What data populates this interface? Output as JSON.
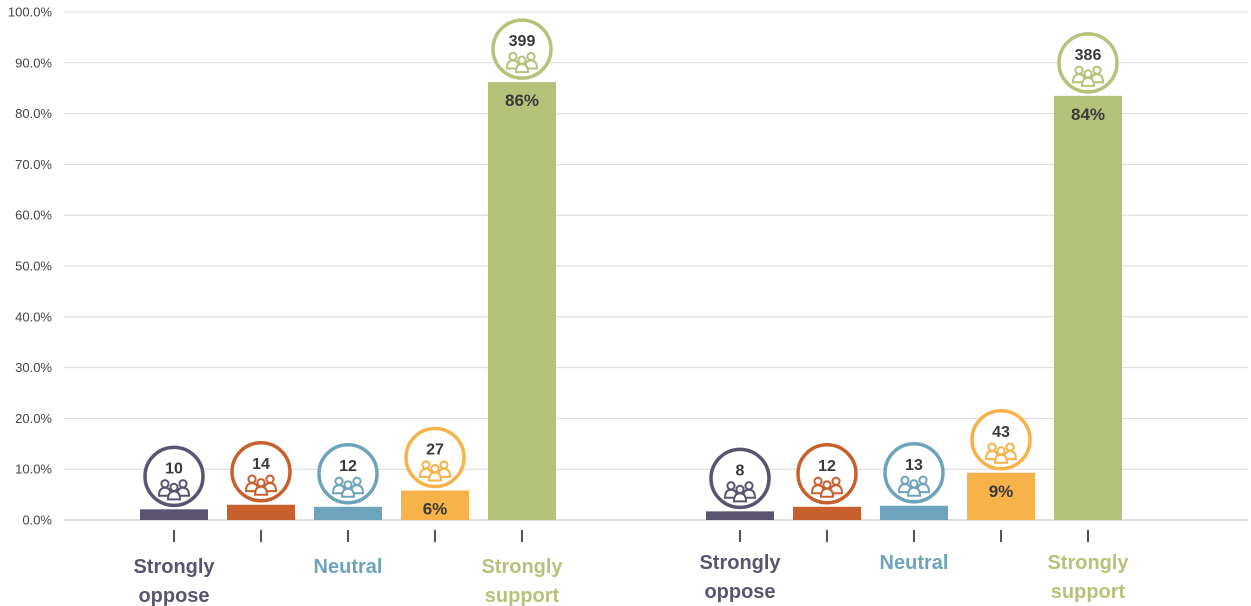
{
  "chart_data": {
    "type": "bar",
    "ylim": [
      0,
      100
    ],
    "y_ticks": [
      "0.0%",
      "10.0%",
      "20.0%",
      "30.0%",
      "40.0%",
      "50.0%",
      "60.0%",
      "70.0%",
      "80.0%",
      "90.0%",
      "100.0%"
    ],
    "grid": true,
    "colors": {
      "strongly_oppose": "#5a5470",
      "oppose": "#c8602e",
      "neutral": "#6ea3bc",
      "support": "#f7b24a",
      "strongly_support": "#b5c27a",
      "grid": "#d9d9d9",
      "axis": "#bfbfbf"
    },
    "groups": [
      {
        "bars": [
          {
            "key": "strongly_oppose",
            "value": 2.1,
            "count": "10",
            "pct_label": "",
            "category_label": [
              "Strongly",
              "oppose"
            ]
          },
          {
            "key": "oppose",
            "value": 3.0,
            "count": "14",
            "pct_label": "",
            "category_label": []
          },
          {
            "key": "neutral",
            "value": 2.6,
            "count": "12",
            "pct_label": "",
            "category_label": [
              "Neutral"
            ]
          },
          {
            "key": "support",
            "value": 5.8,
            "count": "27",
            "pct_label": "6%",
            "category_label": []
          },
          {
            "key": "strongly_support",
            "value": 86.2,
            "count": "399",
            "pct_label": "86%",
            "category_label": [
              "Strongly",
              "support"
            ]
          }
        ]
      },
      {
        "bars": [
          {
            "key": "strongly_oppose",
            "value": 1.7,
            "count": "8",
            "pct_label": "",
            "category_label": [
              "Strongly",
              "oppose"
            ]
          },
          {
            "key": "oppose",
            "value": 2.6,
            "count": "12",
            "pct_label": "",
            "category_label": []
          },
          {
            "key": "neutral",
            "value": 2.8,
            "count": "13",
            "pct_label": "",
            "category_label": [
              "Neutral"
            ]
          },
          {
            "key": "support",
            "value": 9.3,
            "count": "43",
            "pct_label": "9%",
            "category_label": []
          },
          {
            "key": "strongly_support",
            "value": 83.5,
            "count": "386",
            "pct_label": "84%",
            "category_label": [
              "Strongly",
              "support"
            ]
          }
        ]
      }
    ]
  }
}
